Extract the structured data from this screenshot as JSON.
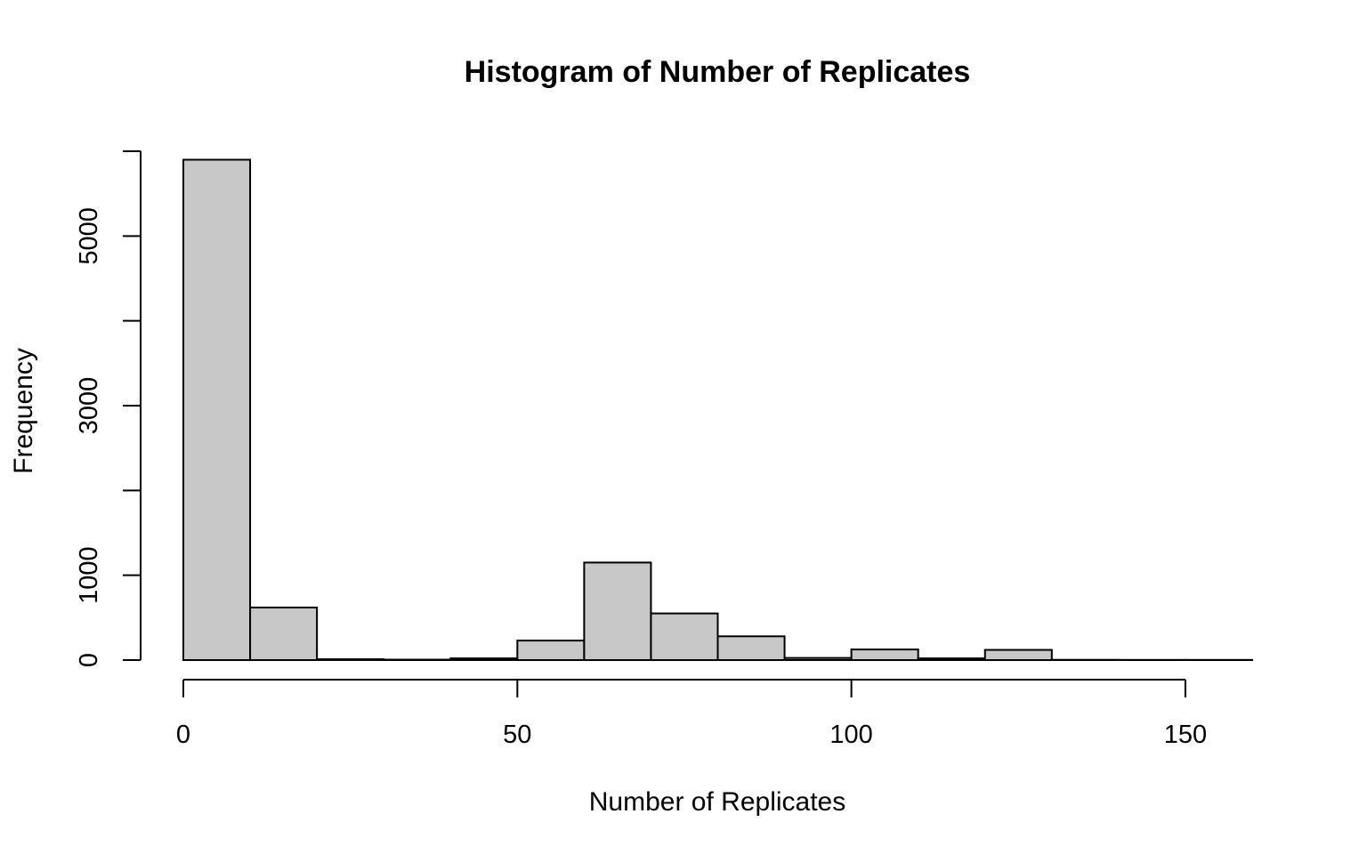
{
  "chart_data": {
    "type": "bar",
    "title": "Histogram of Number of Replicates",
    "xlabel": "Number of Replicates",
    "ylabel": "Frequency",
    "bin_width": 10,
    "bins": [
      {
        "start": 0,
        "end": 10,
        "count": 5900
      },
      {
        "start": 10,
        "end": 20,
        "count": 620
      },
      {
        "start": 20,
        "end": 30,
        "count": 10
      },
      {
        "start": 30,
        "end": 40,
        "count": 5
      },
      {
        "start": 40,
        "end": 50,
        "count": 20
      },
      {
        "start": 50,
        "end": 60,
        "count": 230
      },
      {
        "start": 60,
        "end": 70,
        "count": 1150
      },
      {
        "start": 70,
        "end": 80,
        "count": 550
      },
      {
        "start": 80,
        "end": 90,
        "count": 280
      },
      {
        "start": 90,
        "end": 100,
        "count": 25
      },
      {
        "start": 100,
        "end": 110,
        "count": 125
      },
      {
        "start": 110,
        "end": 120,
        "count": 20
      },
      {
        "start": 120,
        "end": 130,
        "count": 120
      },
      {
        "start": 130,
        "end": 140,
        "count": 3
      },
      {
        "start": 140,
        "end": 150,
        "count": 2
      },
      {
        "start": 150,
        "end": 160,
        "count": 2
      }
    ],
    "xlim": [
      0,
      160
    ],
    "ylim": [
      0,
      6000
    ],
    "x_ticks": [
      0,
      50,
      100,
      150
    ],
    "x_tick_labels": [
      "0",
      "50",
      "100",
      "150"
    ],
    "y_ticks": [
      0,
      1000,
      2000,
      3000,
      4000,
      5000,
      6000
    ],
    "y_tick_labels": [
      "0",
      "1000",
      "",
      "3000",
      "",
      "5000",
      ""
    ],
    "bar_fill": "#c8c8c8",
    "bar_stroke": "#000000",
    "grid": false,
    "legend": "none"
  }
}
